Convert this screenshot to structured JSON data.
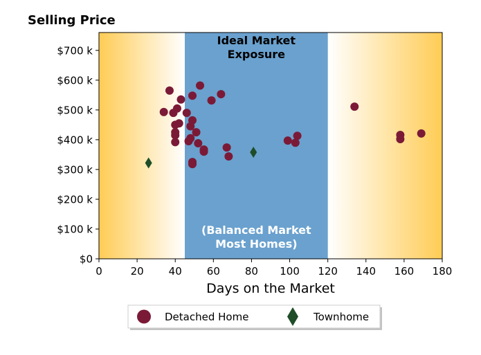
{
  "chart_data": {
    "type": "scatter",
    "title": "Selling Price",
    "xlabel": "Days on the Market",
    "ylabel": "",
    "xlim": [
      0,
      180
    ],
    "ylim": [
      0,
      760000
    ],
    "x_ticks": [
      0,
      20,
      40,
      60,
      80,
      100,
      120,
      140,
      160,
      180
    ],
    "x_tick_labels": [
      "0",
      "20",
      "40",
      "60",
      "80",
      "100",
      "120",
      "140",
      "160",
      "180"
    ],
    "y_ticks": [
      0,
      100000,
      200000,
      300000,
      400000,
      500000,
      600000,
      700000
    ],
    "y_tick_labels": [
      "$0",
      "$100 k",
      "$200 k",
      "$300 k",
      "$400 k",
      "$500 k",
      "$600 k",
      "$700 k"
    ],
    "zones": [
      {
        "x_range": [
          0,
          45
        ],
        "color": "#ffcc55",
        "gradient": "fade-right"
      },
      {
        "x_range": [
          45,
          120
        ],
        "color": "#6aa1ce",
        "label_top": "Ideal Market\nExposure",
        "label_bottom": "(Balanced Market\nMost Homes)"
      },
      {
        "x_range": [
          120,
          180
        ],
        "color": "#ffcc55",
        "gradient": "fade-left"
      }
    ],
    "legend_placement": "bottom-center",
    "series": [
      {
        "name": "Detached Home",
        "marker": "circle",
        "color": "#7b1a37",
        "points": [
          [
            37,
            565000
          ],
          [
            34,
            493000
          ],
          [
            39,
            490000
          ],
          [
            41,
            505000
          ],
          [
            42,
            455000
          ],
          [
            40,
            450000
          ],
          [
            43,
            535000
          ],
          [
            46,
            490000
          ],
          [
            49,
            548000
          ],
          [
            53,
            582000
          ],
          [
            49,
            465000
          ],
          [
            48,
            445000
          ],
          [
            40,
            425000
          ],
          [
            40,
            415000
          ],
          [
            40,
            392000
          ],
          [
            51,
            425000
          ],
          [
            48,
            405000
          ],
          [
            47,
            395000
          ],
          [
            52,
            388000
          ],
          [
            55,
            367000
          ],
          [
            55,
            360000
          ],
          [
            49,
            325000
          ],
          [
            49,
            318000
          ],
          [
            59,
            532000
          ],
          [
            64,
            553000
          ],
          [
            67,
            374000
          ],
          [
            68,
            344000
          ],
          [
            99,
            397000
          ],
          [
            103,
            390000
          ],
          [
            104,
            413000
          ],
          [
            134,
            511000
          ],
          [
            158,
            416000
          ],
          [
            158,
            402000
          ],
          [
            169,
            421000
          ]
        ]
      },
      {
        "name": "Townhome",
        "marker": "diamond",
        "color": "#1e4d28",
        "points": [
          [
            26,
            322000
          ],
          [
            81,
            358000
          ]
        ]
      }
    ]
  }
}
